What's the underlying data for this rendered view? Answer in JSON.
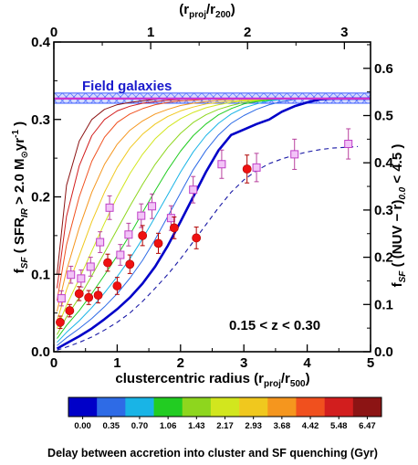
{
  "chart_data": {
    "type": "scatter",
    "left_axis": {
      "label_prefix": "f",
      "label_sub": "SF",
      "label_mid": " ( SFR",
      "label_sub2": "IR",
      "label_end": " > 2.0 M",
      "label_sun": "⊙",
      "label_tail": "yr",
      "label_sup": "-1",
      "label_close": " )",
      "range": [
        0,
        0.4
      ],
      "ticks": [
        0.0,
        0.1,
        0.2,
        0.3,
        0.4
      ],
      "tick_labels": [
        "0.0",
        "0.1",
        "0.2",
        "0.3",
        "0.4"
      ]
    },
    "right_axis": {
      "label_prefix": "f",
      "label_sub": "SF",
      "label_mid": " ( (NUV − r)",
      "label_sub2": "0.0",
      "label_end": " < 4.5 )",
      "range": [
        0,
        0.6557
      ],
      "ticks": [
        0.0,
        0.1,
        0.2,
        0.3,
        0.4,
        0.5,
        0.6
      ],
      "tick_labels": [
        "0.0",
        "0.1",
        "0.2",
        "0.3",
        "0.4",
        "0.5",
        "0.6"
      ]
    },
    "bottom_axis": {
      "label": "clustercentric radius (r",
      "label_sub": "proj",
      "label_mid": "/r",
      "label_sub2": "500",
      "label_end": ")",
      "range": [
        0,
        5
      ],
      "ticks": [
        0,
        1,
        2,
        3,
        4,
        5
      ],
      "tick_labels": [
        "0",
        "1",
        "2",
        "3",
        "4",
        "5"
      ]
    },
    "top_axis": {
      "label": "(r",
      "label_sub": "proj",
      "label_mid": "/r",
      "label_sub2": "200",
      "label_end": ")",
      "range": [
        0,
        3.27
      ],
      "ticks": [
        0,
        1,
        2,
        3
      ],
      "tick_labels": [
        "0",
        "1",
        "2",
        "3"
      ]
    },
    "annotation": "0.15 < z < 0.30",
    "field": {
      "label": "Field galaxies",
      "value": 0.327,
      "band": [
        0.321,
        0.334
      ],
      "line_color": "#cc33cc",
      "band_color": "#8a9cff",
      "label_color": "#1a1acc"
    },
    "model_x": [
      0.05,
      0.2,
      0.4,
      0.6,
      0.8,
      1.0,
      1.2,
      1.4,
      1.6,
      1.8,
      2.0,
      2.2,
      2.4,
      2.6,
      2.8,
      3.0,
      3.2,
      3.4,
      3.6,
      3.8,
      4.0,
      4.2,
      4.4,
      4.6,
      4.8,
      5.0
    ],
    "model_tracks": [
      {
        "delay": "0.00",
        "color": "#0000c8",
        "style": "solid",
        "width": 2.6,
        "values": [
          0.004,
          0.011,
          0.02,
          0.03,
          0.042,
          0.055,
          0.07,
          0.088,
          0.11,
          0.137,
          0.168,
          0.2,
          0.232,
          0.26,
          0.28,
          0.287,
          0.294,
          0.3,
          0.31,
          0.317,
          0.322,
          0.326,
          0.327,
          0.327,
          0.327,
          0.327
        ]
      },
      {
        "delay": "0.35",
        "color": "#2e6be6",
        "style": "solid",
        "width": 1.0,
        "values": [
          0.008,
          0.018,
          0.03,
          0.043,
          0.058,
          0.075,
          0.095,
          0.118,
          0.145,
          0.175,
          0.205,
          0.235,
          0.26,
          0.28,
          0.295,
          0.305,
          0.313,
          0.319,
          0.323,
          0.326,
          0.327,
          0.327,
          0.327,
          0.327,
          0.327,
          0.327
        ]
      },
      {
        "delay": "0.70",
        "color": "#19b4e6",
        "style": "solid",
        "width": 1.0,
        "values": [
          0.012,
          0.025,
          0.04,
          0.057,
          0.076,
          0.097,
          0.12,
          0.146,
          0.174,
          0.203,
          0.232,
          0.258,
          0.279,
          0.295,
          0.307,
          0.315,
          0.32,
          0.324,
          0.326,
          0.327,
          0.327,
          0.327,
          0.327,
          0.327,
          0.327,
          0.327
        ]
      },
      {
        "delay": "1.06",
        "color": "#22cc22",
        "style": "solid",
        "width": 1.0,
        "values": [
          0.017,
          0.034,
          0.053,
          0.075,
          0.099,
          0.124,
          0.151,
          0.18,
          0.208,
          0.235,
          0.259,
          0.279,
          0.294,
          0.306,
          0.314,
          0.32,
          0.323,
          0.325,
          0.326,
          0.327,
          0.327,
          0.327,
          0.327,
          0.327,
          0.327,
          0.327
        ]
      },
      {
        "delay": "1.43",
        "color": "#8ed61e",
        "style": "solid",
        "width": 1.0,
        "values": [
          0.022,
          0.045,
          0.07,
          0.098,
          0.128,
          0.158,
          0.188,
          0.216,
          0.242,
          0.264,
          0.282,
          0.296,
          0.306,
          0.313,
          0.318,
          0.322,
          0.324,
          0.326,
          0.327,
          0.327,
          0.327,
          0.327,
          0.327,
          0.327,
          0.327,
          0.327
        ]
      },
      {
        "delay": "2.17",
        "color": "#d2e61e",
        "style": "solid",
        "width": 1.0,
        "values": [
          0.03,
          0.06,
          0.094,
          0.13,
          0.166,
          0.2,
          0.23,
          0.255,
          0.275,
          0.29,
          0.301,
          0.309,
          0.315,
          0.319,
          0.322,
          0.324,
          0.325,
          0.326,
          0.327,
          0.327,
          0.327,
          0.327,
          0.327,
          0.327,
          0.327,
          0.327
        ]
      },
      {
        "delay": "2.93",
        "color": "#f0c81e",
        "style": "solid",
        "width": 1.0,
        "values": [
          0.04,
          0.08,
          0.124,
          0.168,
          0.206,
          0.238,
          0.263,
          0.281,
          0.294,
          0.304,
          0.311,
          0.316,
          0.32,
          0.322,
          0.324,
          0.325,
          0.326,
          0.327,
          0.327,
          0.327,
          0.327,
          0.327,
          0.327,
          0.327,
          0.327,
          0.327
        ]
      },
      {
        "delay": "3.68",
        "color": "#f5961e",
        "style": "solid",
        "width": 1.0,
        "values": [
          0.052,
          0.105,
          0.16,
          0.206,
          0.242,
          0.268,
          0.286,
          0.298,
          0.307,
          0.313,
          0.318,
          0.321,
          0.323,
          0.325,
          0.326,
          0.327,
          0.327,
          0.327,
          0.327,
          0.327,
          0.327,
          0.327,
          0.327,
          0.327,
          0.327,
          0.327
        ]
      },
      {
        "delay": "4.42",
        "color": "#f0501e",
        "style": "solid",
        "width": 1.0,
        "values": [
          0.066,
          0.138,
          0.2,
          0.246,
          0.277,
          0.296,
          0.307,
          0.314,
          0.319,
          0.322,
          0.324,
          0.325,
          0.326,
          0.327,
          0.327,
          0.327,
          0.327,
          0.327,
          0.327,
          0.327,
          0.327,
          0.327,
          0.327,
          0.327,
          0.327,
          0.327
        ]
      },
      {
        "delay": "5.48",
        "color": "#d21e1e",
        "style": "solid",
        "width": 1.0,
        "values": [
          0.082,
          0.175,
          0.24,
          0.279,
          0.3,
          0.311,
          0.317,
          0.321,
          0.323,
          0.325,
          0.326,
          0.327,
          0.327,
          0.327,
          0.327,
          0.327,
          0.327,
          0.327,
          0.327,
          0.327,
          0.327,
          0.327,
          0.327,
          0.327,
          0.327,
          0.327
        ]
      },
      {
        "delay": "6.47",
        "color": "#8c1414",
        "style": "solid",
        "width": 1.0,
        "values": [
          0.1,
          0.215,
          0.272,
          0.3,
          0.313,
          0.319,
          0.322,
          0.324,
          0.326,
          0.327,
          0.327,
          0.327,
          0.327,
          0.327,
          0.327,
          0.327,
          0.327,
          0.327,
          0.327,
          0.327,
          0.327,
          0.327,
          0.327,
          0.327,
          0.327,
          0.327
        ]
      }
    ],
    "dashed_track": {
      "color": "#1a1aa6",
      "x": [
        0.05,
        0.2,
        0.4,
        0.6,
        0.8,
        1.0,
        1.2,
        1.4,
        1.6,
        1.8,
        2.0,
        2.2,
        2.4,
        2.6,
        2.8,
        3.0,
        3.2,
        3.4,
        3.6,
        3.8,
        4.0,
        4.2,
        4.4,
        4.6,
        4.8
      ],
      "values": [
        0.002,
        0.006,
        0.012,
        0.019,
        0.028,
        0.038,
        0.05,
        0.065,
        0.082,
        0.1,
        0.12,
        0.142,
        0.164,
        0.186,
        0.206,
        0.222,
        0.234,
        0.243,
        0.249,
        0.254,
        0.258,
        0.261,
        0.263,
        0.264,
        0.265
      ]
    },
    "ir_points": {
      "marker": "filled-circle",
      "color": "#ee1111",
      "points": [
        {
          "x": 0.1,
          "y": 0.038,
          "err": 0.008
        },
        {
          "x": 0.25,
          "y": 0.053,
          "err": 0.008
        },
        {
          "x": 0.4,
          "y": 0.075,
          "err": 0.009
        },
        {
          "x": 0.55,
          "y": 0.07,
          "err": 0.009
        },
        {
          "x": 0.7,
          "y": 0.073,
          "err": 0.01
        },
        {
          "x": 0.85,
          "y": 0.115,
          "err": 0.011
        },
        {
          "x": 1.0,
          "y": 0.085,
          "err": 0.011
        },
        {
          "x": 1.2,
          "y": 0.113,
          "err": 0.012
        },
        {
          "x": 1.4,
          "y": 0.15,
          "err": 0.013
        },
        {
          "x": 1.65,
          "y": 0.14,
          "err": 0.013
        },
        {
          "x": 1.9,
          "y": 0.16,
          "err": 0.014
        },
        {
          "x": 2.25,
          "y": 0.147,
          "err": 0.014
        },
        {
          "x": 3.05,
          "y": 0.236,
          "err": 0.018
        }
      ]
    },
    "uv_points": {
      "marker": "open-square",
      "color": "#dd88ee",
      "points": [
        {
          "x": 0.12,
          "y": 0.113,
          "err": 0.016
        },
        {
          "x": 0.27,
          "y": 0.163,
          "err": 0.018
        },
        {
          "x": 0.43,
          "y": 0.155,
          "err": 0.018
        },
        {
          "x": 0.58,
          "y": 0.18,
          "err": 0.02
        },
        {
          "x": 0.73,
          "y": 0.232,
          "err": 0.022
        },
        {
          "x": 0.88,
          "y": 0.305,
          "err": 0.025
        },
        {
          "x": 1.05,
          "y": 0.205,
          "err": 0.022
        },
        {
          "x": 1.18,
          "y": 0.248,
          "err": 0.024
        },
        {
          "x": 1.38,
          "y": 0.288,
          "err": 0.025
        },
        {
          "x": 1.55,
          "y": 0.308,
          "err": 0.026
        },
        {
          "x": 1.85,
          "y": 0.283,
          "err": 0.026
        },
        {
          "x": 2.2,
          "y": 0.343,
          "err": 0.028
        },
        {
          "x": 2.65,
          "y": 0.397,
          "err": 0.03
        },
        {
          "x": 3.2,
          "y": 0.39,
          "err": 0.03
        },
        {
          "x": 3.8,
          "y": 0.418,
          "err": 0.032
        },
        {
          "x": 4.65,
          "y": 0.44,
          "err": 0.032
        }
      ]
    },
    "colorbar": {
      "label": "Delay between accretion into cluster and SF quenching (Gyr)",
      "colors": [
        "#0000c8",
        "#2e6be6",
        "#19b4e6",
        "#22cc22",
        "#8ed61e",
        "#d2e61e",
        "#f0c81e",
        "#f5961e",
        "#f0501e",
        "#d21e1e",
        "#8c1414"
      ],
      "tick_labels": [
        "0.00",
        "0.35",
        "0.70",
        "1.06",
        "1.43",
        "2.17",
        "2.93",
        "3.68",
        "4.42",
        "5.48",
        "6.47"
      ]
    }
  }
}
